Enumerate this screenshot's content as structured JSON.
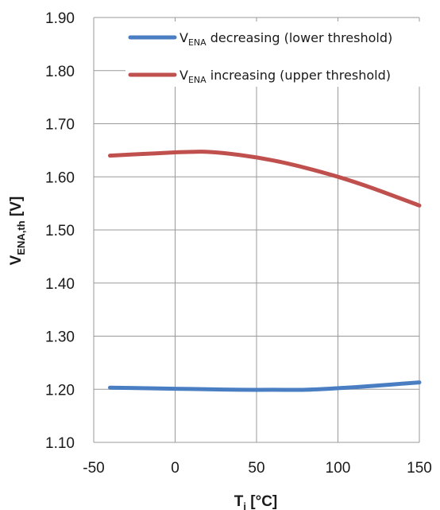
{
  "chart_data": {
    "type": "line",
    "xlabel": {
      "main": "T",
      "sub": "j",
      "unit": " [°C]"
    },
    "ylabel": {
      "main": "V",
      "sub": "ENA,th",
      "unit": " [V]"
    },
    "xlim": [
      -50,
      150
    ],
    "ylim": [
      1.1,
      1.9
    ],
    "xticks": [
      -50,
      0,
      50,
      100,
      150
    ],
    "yticks": [
      1.1,
      1.2,
      1.3,
      1.4,
      1.5,
      1.6,
      1.7,
      1.8,
      1.9
    ],
    "ytick_labels": [
      "1.10",
      "1.20",
      "1.30",
      "1.40",
      "1.50",
      "1.60",
      "1.70",
      "1.80",
      "1.90"
    ],
    "grid": true,
    "legend_position": "top-right",
    "series": [
      {
        "legend": {
          "main": "V",
          "sub": "ENA",
          "rest": " decreasing (lower threshold)"
        },
        "color": "#4a7ec3",
        "x": [
          -40,
          -20,
          0,
          20,
          40,
          60,
          80,
          100,
          120,
          150
        ],
        "y": [
          1.203,
          1.202,
          1.201,
          1.2,
          1.199,
          1.199,
          1.199,
          1.202,
          1.206,
          1.213
        ]
      },
      {
        "legend": {
          "main": "V",
          "sub": "ENA",
          "rest": " increasing (upper threshold)"
        },
        "color": "#c0504d",
        "x": [
          -40,
          -20,
          0,
          10,
          20,
          40,
          60,
          80,
          100,
          120,
          150
        ],
        "y": [
          1.64,
          1.643,
          1.646,
          1.647,
          1.647,
          1.641,
          1.631,
          1.617,
          1.6,
          1.58,
          1.546
        ]
      }
    ]
  }
}
